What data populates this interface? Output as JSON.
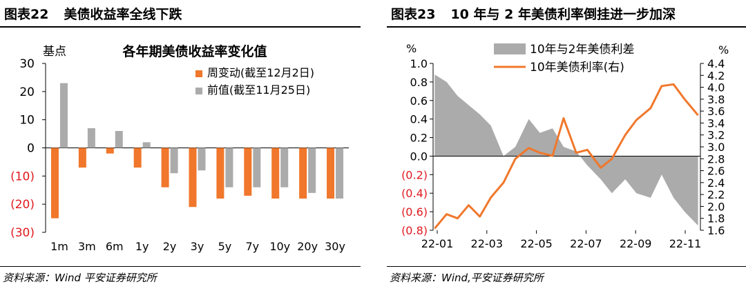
{
  "left": {
    "header_number": "图表22",
    "header_title": "美债收益率全线下跌",
    "source": "资料来源：Wind 平安证券研究所"
  },
  "right": {
    "header_number": "图表23",
    "header_title": "10 年与 2 年美债利率倒挂进一步加深",
    "source": "资料来源：Wind,平安证券研究所"
  },
  "colors": {
    "orange": "#F0772B",
    "gray": "#ABABAB",
    "negative": "#E0191F"
  },
  "chart_data": [
    {
      "type": "bar",
      "title": "各年期美债收益率变化值",
      "ylabel": "基点",
      "categories": [
        "1m",
        "3m",
        "6m",
        "1y",
        "2y",
        "3y",
        "5y",
        "7y",
        "10y",
        "20y",
        "30y"
      ],
      "ylim": [
        -30,
        30
      ],
      "yticks": [
        30,
        20,
        10,
        0,
        -10,
        -20,
        -30
      ],
      "ytick_labels": [
        "30",
        "20",
        "10",
        "0",
        "(10)",
        "(20)",
        "(30)"
      ],
      "legend_position": "top-right",
      "grid": false,
      "series": [
        {
          "name": "周变动(截至12月2日)",
          "values": [
            -25,
            -7,
            -2,
            -7,
            -14,
            -21,
            -18,
            -17,
            -18,
            -18,
            -18
          ]
        },
        {
          "name": "前值(截至11月25日)",
          "values": [
            23,
            7,
            6,
            2,
            -9,
            -8,
            -14,
            -14,
            -14,
            -16,
            -18
          ]
        }
      ]
    },
    {
      "type": "line",
      "subtype": "area + line, dual axis",
      "xlabel": "",
      "x_ticks": [
        "22-01",
        "22-03",
        "22-05",
        "22-07",
        "22-09",
        "22-11"
      ],
      "y_left_label": "%",
      "y_right_label": "%",
      "y_left_lim": [
        -0.8,
        1.0
      ],
      "y_left_ticks": [
        1.0,
        0.8,
        0.6,
        0.4,
        0.2,
        0.0,
        -0.2,
        -0.4,
        -0.6,
        -0.8
      ],
      "y_left_tick_labels": [
        "1.0",
        "0.8",
        "0.6",
        "0.4",
        "0.2",
        "0.0",
        "(0.2)",
        "(0.4)",
        "(0.6)",
        "(0.8)"
      ],
      "y_right_lim": [
        1.6,
        4.4
      ],
      "y_right_ticks": [
        4.4,
        4.2,
        4.0,
        3.8,
        3.6,
        3.4,
        3.2,
        3.0,
        2.8,
        2.6,
        2.4,
        2.2,
        2.0,
        1.8,
        1.6
      ],
      "y_right_tick_labels": [
        "4.4",
        "4.2",
        "4.0",
        "3.8",
        "3.6",
        "3.4",
        "3.2",
        "3.0",
        "2.8",
        "2.6",
        "2.4",
        "2.2",
        "2.0",
        "1.8",
        "1.6"
      ],
      "legend_position": "top",
      "grid": false,
      "series": [
        {
          "name": "10年与2年美债利差",
          "kind": "area",
          "axis": "left",
          "x": [
            "2022-01-03",
            "2022-01-18",
            "2022-02-01",
            "2022-02-15",
            "2022-03-01",
            "2022-03-15",
            "2022-03-31",
            "2022-04-15",
            "2022-05-02",
            "2022-05-16",
            "2022-06-01",
            "2022-06-15",
            "2022-07-01",
            "2022-07-15",
            "2022-08-01",
            "2022-08-15",
            "2022-09-01",
            "2022-09-15",
            "2022-10-03",
            "2022-10-17",
            "2022-11-01",
            "2022-11-15",
            "2022-12-02"
          ],
          "values": [
            0.88,
            0.8,
            0.65,
            0.55,
            0.45,
            0.33,
            0.0,
            0.1,
            0.4,
            0.25,
            0.3,
            0.1,
            0.05,
            -0.1,
            -0.25,
            -0.4,
            -0.25,
            -0.4,
            -0.45,
            -0.2,
            -0.45,
            -0.6,
            -0.75
          ]
        },
        {
          "name": "10年美债利率(右)",
          "kind": "line",
          "axis": "right",
          "x": [
            "2022-01-03",
            "2022-01-18",
            "2022-02-01",
            "2022-02-15",
            "2022-03-01",
            "2022-03-15",
            "2022-03-31",
            "2022-04-15",
            "2022-05-02",
            "2022-05-16",
            "2022-06-01",
            "2022-06-15",
            "2022-07-01",
            "2022-07-15",
            "2022-08-01",
            "2022-08-15",
            "2022-09-01",
            "2022-09-15",
            "2022-10-03",
            "2022-10-17",
            "2022-11-01",
            "2022-11-15",
            "2022-12-02"
          ],
          "values": [
            1.63,
            1.87,
            1.8,
            2.02,
            1.83,
            2.15,
            2.4,
            2.8,
            2.98,
            2.9,
            2.85,
            3.48,
            2.9,
            2.95,
            2.65,
            2.8,
            3.2,
            3.45,
            3.65,
            4.02,
            4.05,
            3.8,
            3.53
          ]
        }
      ]
    }
  ]
}
